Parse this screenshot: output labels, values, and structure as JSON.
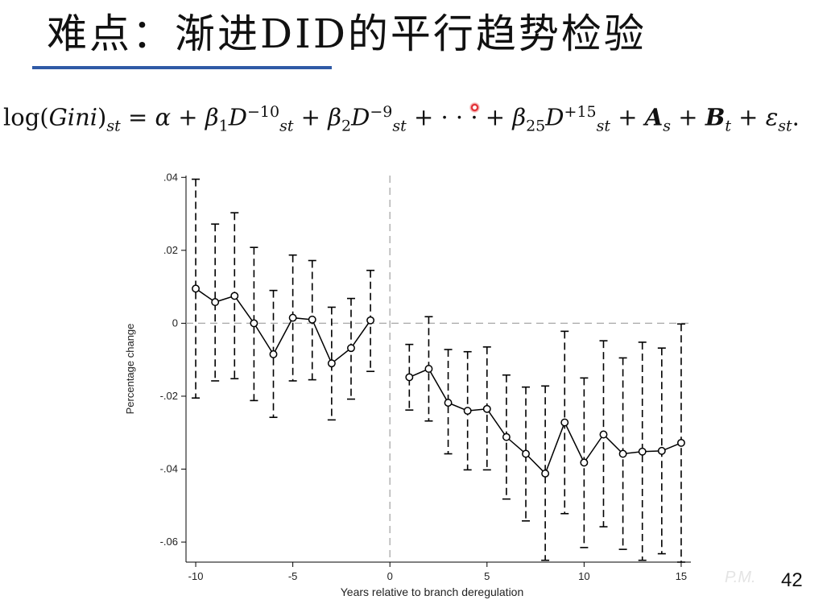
{
  "slide": {
    "title": "难点：渐进DID的平行趋势检验",
    "page_number": "42"
  },
  "equation": {
    "lhs_log": "log(",
    "lhs_gini": "Gini",
    "lhs_close": ")",
    "lhs_sub": "st",
    "eq": " = ",
    "alpha": "α",
    "plus1": " + ",
    "beta1": "β",
    "beta1_sub": "1",
    "D1": "D",
    "D1_sup": "−10",
    "D1_sub": "st",
    "plus2": " + ",
    "beta2": "β",
    "beta2_sub": "2",
    "D2": "D",
    "D2_sup": "−9",
    "D2_sub": "st",
    "mid": " + · · · + ",
    "beta25": "β",
    "beta25_sub": "25",
    "D25": "D",
    "D25_sup": "+15",
    "D25_sub": "st",
    "plus3": " + ",
    "A": "A",
    "A_sub": "s",
    "plus4": " + ",
    "B": "B",
    "B_sub": "t",
    "plus5": " + ",
    "eps": "ε",
    "eps_sub": "st",
    "end": "."
  },
  "chart_data": {
    "type": "line",
    "xlabel": "Years relative to branch deregulation",
    "ylabel": "Percentage change",
    "xlim": [
      -10.5,
      15.5
    ],
    "ylim": [
      -0.0655,
      0.0405
    ],
    "x_ticks": [
      -10,
      -5,
      0,
      5,
      10,
      15
    ],
    "x_tick_labels": [
      "-10",
      "-5",
      "0",
      "5",
      "10",
      "15"
    ],
    "y_ticks": [
      0.04,
      0.02,
      0,
      -0.02,
      -0.04,
      -0.06
    ],
    "y_tick_labels": [
      ".04",
      ".02",
      "0",
      "-.02",
      "-.04",
      "-.06"
    ],
    "reference_lines": {
      "x": 0,
      "y": 0,
      "style": "dashed"
    },
    "colors": {
      "line": "#000000",
      "reference": "#a8a8a8"
    },
    "series": [
      {
        "segment": "pre",
        "x": [
          -10,
          -9,
          -8,
          -7,
          -6,
          -5,
          -4,
          -3,
          -2,
          -1
        ],
        "y": [
          0.0095,
          0.0058,
          0.0075,
          0.0,
          -0.0085,
          0.0015,
          0.001,
          -0.011,
          -0.0068,
          0.0008
        ],
        "ci_low": [
          -0.0205,
          -0.0158,
          -0.0152,
          -0.0212,
          -0.0258,
          -0.0158,
          -0.0155,
          -0.0265,
          -0.0208,
          -0.0132
        ],
        "ci_high": [
          0.0395,
          0.0272,
          0.0303,
          0.0208,
          0.009,
          0.0187,
          0.0172,
          0.0044,
          0.0068,
          0.0145
        ]
      },
      {
        "segment": "post",
        "x": [
          1,
          2,
          3,
          4,
          5,
          6,
          7,
          8,
          9,
          10,
          11,
          12,
          13,
          14,
          15
        ],
        "y": [
          -0.0148,
          -0.0125,
          -0.0218,
          -0.024,
          -0.0235,
          -0.0312,
          -0.0358,
          -0.0412,
          -0.0272,
          -0.0382,
          -0.0305,
          -0.0358,
          -0.0352,
          -0.035,
          -0.0328
        ],
        "ci_low": [
          -0.0238,
          -0.0268,
          -0.0358,
          -0.0402,
          -0.0402,
          -0.0482,
          -0.0542,
          -0.065,
          -0.0522,
          -0.0615,
          -0.0558,
          -0.062,
          -0.065,
          -0.0632,
          -0.0655
        ],
        "ci_high": [
          -0.0058,
          0.0018,
          -0.0072,
          -0.0078,
          -0.0065,
          -0.0142,
          -0.0175,
          -0.0172,
          -0.0022,
          -0.015,
          -0.0048,
          -0.0095,
          -0.0052,
          -0.0068,
          -0.0002
        ]
      }
    ]
  }
}
